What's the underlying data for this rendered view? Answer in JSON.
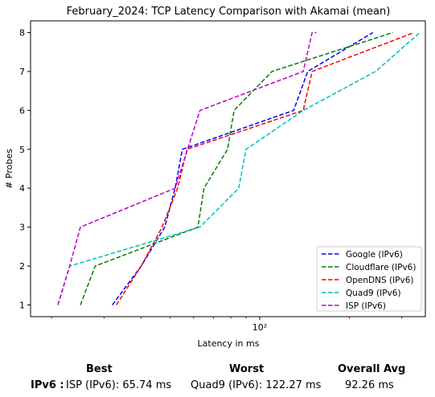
{
  "chart_data": {
    "type": "line",
    "title": "February_2024: TCP Latency Comparison with Akamai (mean)",
    "xlabel": "Latency in ms",
    "ylabel": "# Probes",
    "xscale": "log",
    "xlim": [
      17,
      360
    ],
    "ylim": [
      0.7,
      8.3
    ],
    "x_ticks": [
      {
        "value": 100,
        "label": "10²"
      }
    ],
    "y_ticks": [
      1,
      2,
      3,
      4,
      5,
      6,
      7,
      8
    ],
    "grid": false,
    "legend_position": "lower-right",
    "series": [
      {
        "name": "Google (IPv6)",
        "color": "#0000ff",
        "points": [
          [
            32,
            1
          ],
          [
            40,
            2
          ],
          [
            48,
            3
          ],
          [
            52,
            4
          ],
          [
            55,
            5
          ],
          [
            130,
            6
          ],
          [
            145,
            7
          ],
          [
            240,
            8
          ]
        ]
      },
      {
        "name": "Cloudflare (IPv6)",
        "color": "#008000",
        "points": [
          [
            25,
            1
          ],
          [
            28,
            2
          ],
          [
            62,
            3
          ],
          [
            65,
            4
          ],
          [
            78,
            5
          ],
          [
            82,
            6
          ],
          [
            110,
            7
          ],
          [
            280,
            8
          ]
        ]
      },
      {
        "name": "OpenDNS (IPv6)",
        "color": "#ff0000",
        "points": [
          [
            33,
            1
          ],
          [
            40,
            2
          ],
          [
            47,
            3
          ],
          [
            53,
            4
          ],
          [
            57,
            5
          ],
          [
            140,
            6
          ],
          [
            150,
            7
          ],
          [
            330,
            8
          ]
        ]
      },
      {
        "name": "Quad9 (IPv6)",
        "color": "#00bfbf",
        "points": [
          [
            21,
            1
          ],
          [
            23,
            2
          ],
          [
            63,
            3
          ],
          [
            85,
            4
          ],
          [
            90,
            5
          ],
          [
            140,
            6
          ],
          [
            245,
            7
          ],
          [
            345,
            8
          ]
        ]
      },
      {
        "name": "ISP (IPv6)",
        "color": "#bf00bf",
        "points": [
          [
            21,
            1
          ],
          [
            23,
            2
          ],
          [
            25,
            3
          ],
          [
            52,
            4
          ],
          [
            63,
            6
          ],
          [
            140,
            7
          ],
          [
            150,
            8
          ],
          [
            155,
            8
          ]
        ]
      }
    ]
  },
  "summary": {
    "headers": {
      "best": "Best",
      "worst": "Worst",
      "overall": "Overall Avg"
    },
    "row_label": "IPv6 :",
    "best": "ISP (IPv6): 65.74 ms",
    "worst": "Quad9 (IPv6): 122.27 ms",
    "overall": "92.26 ms"
  }
}
